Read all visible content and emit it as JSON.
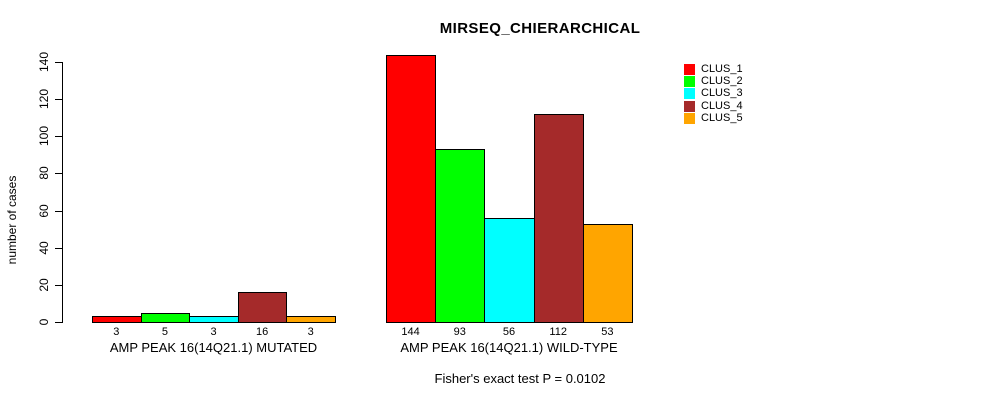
{
  "title": "MIRSEQ_CHIERARCHICAL",
  "footer": "Fisher's exact test P = 0.0102",
  "axis_colors": {
    "axis": "#000000",
    "text": "#000000"
  },
  "legend": {
    "position": "top-right",
    "items": [
      {
        "label": "CLUS_1",
        "color": "#FF0000"
      },
      {
        "label": "CLUS_2",
        "color": "#00FF00"
      },
      {
        "label": "CLUS_3",
        "color": "#00FFFF"
      },
      {
        "label": "CLUS_4",
        "color": "#A52A2A"
      },
      {
        "label": "CLUS_5",
        "color": "#FFA500"
      }
    ]
  },
  "chart_data": {
    "type": "bar",
    "title": "MIRSEQ_CHIERARCHICAL",
    "xlabel": "",
    "ylabel": "number of cases",
    "ylim": [
      0,
      140
    ],
    "yticks": [
      0,
      20,
      40,
      60,
      80,
      100,
      120,
      140
    ],
    "grid": false,
    "legend_position": "top-right",
    "series": [
      {
        "name": "CLUS_1",
        "color": "#FF0000",
        "values": [
          3,
          144
        ]
      },
      {
        "name": "CLUS_2",
        "color": "#00FF00",
        "values": [
          5,
          93
        ]
      },
      {
        "name": "CLUS_3",
        "color": "#00FFFF",
        "values": [
          3,
          56
        ]
      },
      {
        "name": "CLUS_4",
        "color": "#A52A2A",
        "values": [
          16,
          112
        ]
      },
      {
        "name": "CLUS_5",
        "color": "#FFA500",
        "values": [
          3,
          53
        ]
      }
    ],
    "groups": [
      {
        "label": "AMP PEAK 16(14Q21.1) MUTATED",
        "values": [
          3,
          5,
          3,
          16,
          3
        ]
      },
      {
        "label": "AMP PEAK 16(14Q21.1) WILD-TYPE",
        "values": [
          144,
          93,
          56,
          112,
          53
        ]
      }
    ],
    "bar_value_labels_shown": true,
    "annotation": "Fisher's exact test P = 0.0102"
  }
}
